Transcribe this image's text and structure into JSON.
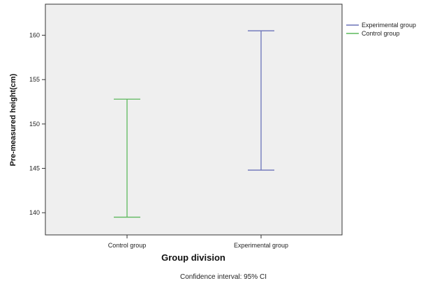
{
  "chart_data": {
    "type": "errorbar",
    "xlabel": "Group division",
    "ylabel": "Pre-measured height(cm)",
    "ylim": [
      137.5,
      163.5
    ],
    "yticks": [
      140,
      145,
      150,
      155,
      160
    ],
    "grid": false,
    "legend_position": "top-right outside",
    "footnote": "Confidence interval: 95% CI",
    "categories": [
      "Control group",
      "Experimental group"
    ],
    "series": [
      {
        "name": "Experimental group",
        "category": "Experimental group",
        "color": "#6a72b8",
        "low": 144.8,
        "high": 160.5
      },
      {
        "name": "Control group",
        "category": "Control group",
        "color": "#5cb85c",
        "low": 139.5,
        "high": 152.8
      }
    ]
  }
}
